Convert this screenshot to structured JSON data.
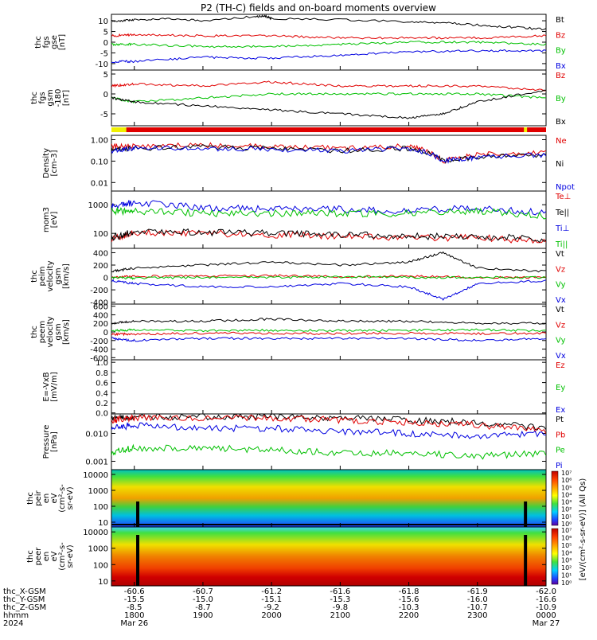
{
  "title": "P2 (TH-C) fields and on-board moments overview",
  "chart_data": [
    {
      "type": "line",
      "ylabel": [
        "thc",
        "fgs",
        "gse",
        "[nT]"
      ],
      "yticks": [
        "10",
        "5",
        "0",
        "-5",
        "-10"
      ],
      "ylim": [
        -13,
        13
      ],
      "yscale": "linear",
      "series": [
        {
          "name": "Bt",
          "color": "#000000",
          "x": [
            1740,
            1750,
            1800,
            1830,
            1900,
            1945,
            1955,
            2000,
            2100,
            2200,
            2230,
            2300,
            2330,
            2400
          ],
          "values": [
            10,
            10,
            10.5,
            11,
            10,
            12,
            12,
            11,
            10.5,
            9.5,
            9,
            8,
            7,
            6
          ]
        },
        {
          "name": "Bz",
          "color": "#e00000",
          "x": [
            1740,
            1800,
            1900,
            2000,
            2100,
            2200,
            2300,
            2400
          ],
          "values": [
            3,
            3.5,
            3,
            3,
            2,
            2,
            2,
            3
          ]
        },
        {
          "name": "By",
          "color": "#00c000",
          "x": [
            1740,
            1800,
            1900,
            2000,
            2100,
            2200,
            2300,
            2400
          ],
          "values": [
            -1,
            -1,
            -2,
            -2,
            -1,
            0,
            0,
            -1
          ]
        },
        {
          "name": "Bx",
          "color": "#0000e0",
          "x": [
            1740,
            1800,
            1900,
            2000,
            2100,
            2200,
            2300,
            2400
          ],
          "values": [
            -9,
            -9,
            -7,
            -7.5,
            -6,
            -4.5,
            -4,
            -4
          ]
        }
      ]
    },
    {
      "type": "line",
      "ylabel": [
        "thc",
        "fgs",
        "gsm",
        "-180",
        "[nT]"
      ],
      "yticks": [
        "5",
        "0",
        "-5"
      ],
      "ylim": [
        -8,
        6
      ],
      "yscale": "linear",
      "series": [
        {
          "name": "Bz",
          "color": "#e00000",
          "x": [
            1740,
            1800,
            1900,
            2000,
            2100,
            2200,
            2300,
            2400
          ],
          "values": [
            2,
            2.5,
            2,
            3,
            2,
            2,
            2,
            1
          ]
        },
        {
          "name": "By",
          "color": "#00c000",
          "x": [
            1740,
            1800,
            1900,
            2000,
            2100,
            2200,
            2300,
            2400
          ],
          "values": [
            -1,
            -2,
            -1,
            0,
            0,
            0,
            0,
            -1
          ]
        },
        {
          "name": "Bx",
          "color": "#000000",
          "x": [
            1740,
            1800,
            1900,
            2000,
            2100,
            2200,
            2230,
            2300,
            2400
          ],
          "values": [
            -1,
            -2,
            -3,
            -4,
            -5,
            -6,
            -5,
            -2,
            1
          ]
        }
      ]
    },
    {
      "type": "line",
      "ylabel": [
        "Density",
        "[cm-3]"
      ],
      "yticks": [
        "1.00",
        "0.10",
        "0.01"
      ],
      "ylim": [
        0.004,
        1.6
      ],
      "yscale": "log",
      "series": [
        {
          "name": "Ne",
          "color": "#e00000",
          "x": [
            1740,
            1800,
            1900,
            2000,
            2100,
            2200,
            2230,
            2300,
            2400
          ],
          "values": [
            0.5,
            0.5,
            0.55,
            0.5,
            0.4,
            0.5,
            0.1,
            0.2,
            0.25
          ]
        },
        {
          "name": "Ni",
          "color": "#000000",
          "x": [
            1740,
            1800,
            1900,
            2000,
            2100,
            2200,
            2230,
            2300,
            2400
          ],
          "values": [
            0.3,
            0.4,
            0.45,
            0.4,
            0.3,
            0.4,
            0.1,
            0.15,
            0.2
          ]
        },
        {
          "name": "Npot",
          "color": "#0000e0",
          "x": [
            1740,
            1800,
            1900,
            2000,
            2100,
            2200,
            2230,
            2300,
            2400
          ],
          "values": [
            0.3,
            0.4,
            0.4,
            0.35,
            0.3,
            0.4,
            0.1,
            0.15,
            0.2
          ]
        }
      ]
    },
    {
      "type": "line",
      "ylabel": [
        "mom3",
        "[eV]"
      ],
      "yticks": [
        "1000",
        "100"
      ],
      "ylim": [
        30,
        3000
      ],
      "yscale": "log",
      "series": [
        {
          "name": "Te⊥",
          "color": "#e00000",
          "x": [
            1740,
            1800,
            1900,
            2000,
            2100,
            2200,
            2300,
            2400
          ],
          "values": [
            60,
            100,
            100,
            90,
            80,
            70,
            70,
            50
          ]
        },
        {
          "name": "Te||",
          "color": "#000000",
          "x": [
            1740,
            1800,
            1900,
            2000,
            2100,
            2200,
            2300,
            2400
          ],
          "values": [
            70,
            110,
            110,
            100,
            90,
            80,
            80,
            60
          ]
        },
        {
          "name": "Ti⊥",
          "color": "#0000e0",
          "x": [
            1740,
            1800,
            1900,
            2000,
            2100,
            2200,
            2300,
            2400
          ],
          "values": [
            900,
            1200,
            800,
            700,
            700,
            600,
            800,
            500
          ]
        },
        {
          "name": "Ti||",
          "color": "#00c000",
          "x": [
            1740,
            1800,
            1900,
            2000,
            2100,
            2200,
            2300,
            2400
          ],
          "values": [
            600,
            600,
            500,
            500,
            500,
            500,
            600,
            400
          ]
        }
      ]
    },
    {
      "type": "line",
      "ylabel": [
        "thc",
        "peim",
        "velocity",
        "gsm",
        "[km/s]"
      ],
      "yticks": [
        "400",
        "200",
        "0",
        "-200",
        "-400"
      ],
      "ylim": [
        -430,
        470
      ],
      "yscale": "linear",
      "series": [
        {
          "name": "Vt",
          "color": "#000000",
          "x": [
            1740,
            1800,
            1900,
            2000,
            2100,
            2200,
            2230,
            2300,
            2400
          ],
          "values": [
            100,
            150,
            200,
            250,
            200,
            250,
            400,
            150,
            100
          ]
        },
        {
          "name": "Vz",
          "color": "#e00000",
          "x": [
            1740,
            1800,
            1900,
            2000,
            2100,
            2200,
            2300,
            2400
          ],
          "values": [
            0,
            20,
            20,
            30,
            10,
            20,
            0,
            0
          ]
        },
        {
          "name": "Vy",
          "color": "#00c000",
          "x": [
            1740,
            1800,
            1900,
            2000,
            2100,
            2200,
            2300,
            2400
          ],
          "values": [
            0,
            -10,
            0,
            0,
            10,
            0,
            0,
            0
          ]
        },
        {
          "name": "Vx",
          "color": "#0000e0",
          "x": [
            1740,
            1800,
            1900,
            2000,
            2100,
            2200,
            2230,
            2300,
            2400
          ],
          "values": [
            -50,
            -100,
            -150,
            -150,
            -100,
            -150,
            -350,
            -100,
            -50
          ]
        }
      ]
    },
    {
      "type": "line",
      "ylabel": [
        "thc",
        "peem",
        "velocity",
        "gsm",
        "[km/s]"
      ],
      "yticks": [
        "600",
        "400",
        "200",
        "0",
        "-200",
        "-400",
        "-600"
      ],
      "ylim": [
        -650,
        650
      ],
      "yscale": "linear",
      "series": [
        {
          "name": "Vt",
          "color": "#000000",
          "x": [
            1740,
            1800,
            1900,
            2000,
            2100,
            2200,
            2300,
            2400
          ],
          "values": [
            200,
            250,
            250,
            300,
            250,
            250,
            200,
            200
          ]
        },
        {
          "name": "Vz",
          "color": "#e00000",
          "x": [
            1740,
            1800,
            1900,
            2000,
            2100,
            2200,
            2300,
            2400
          ],
          "values": [
            -50,
            -50,
            -30,
            -30,
            -40,
            -30,
            -40,
            -30
          ]
        },
        {
          "name": "Vy",
          "color": "#00c000",
          "x": [
            1740,
            1800,
            1900,
            2000,
            2100,
            2200,
            2300,
            2400
          ],
          "values": [
            30,
            50,
            30,
            40,
            30,
            40,
            50,
            30
          ]
        },
        {
          "name": "Vx",
          "color": "#0000e0",
          "x": [
            1740,
            1800,
            1900,
            2000,
            2100,
            2200,
            2300,
            2400
          ],
          "values": [
            -150,
            -200,
            -150,
            -150,
            -150,
            -150,
            -200,
            -150
          ]
        }
      ]
    },
    {
      "type": "line",
      "ylabel": [
        "E=-VxB",
        "[mV/m]"
      ],
      "yticks": [
        "1.0",
        "0.8",
        "0.6",
        "0.4",
        "0.2",
        "0.0"
      ],
      "ylim": [
        -0.02,
        1.05
      ],
      "yscale": "linear",
      "series": [
        {
          "name": "Ez",
          "color": "#e00000",
          "x": [],
          "values": []
        },
        {
          "name": "Ey",
          "color": "#00c000",
          "x": [],
          "values": []
        },
        {
          "name": "Ex",
          "color": "#0000e0",
          "x": [],
          "values": []
        }
      ]
    },
    {
      "type": "line",
      "ylabel": [
        "Pressure",
        "[nPa]"
      ],
      "yticks": [
        "0.010",
        "0.001"
      ],
      "ylim": [
        0.0005,
        0.05
      ],
      "yscale": "log",
      "series": [
        {
          "name": "Pt",
          "color": "#000000",
          "x": [
            1740,
            1800,
            1900,
            2000,
            2100,
            2200,
            2300,
            2400
          ],
          "values": [
            0.035,
            0.04,
            0.04,
            0.04,
            0.035,
            0.03,
            0.025,
            0.015
          ]
        },
        {
          "name": "Pb",
          "color": "#e00000",
          "x": [
            1740,
            1800,
            1900,
            2000,
            2100,
            2200,
            2300,
            2400
          ],
          "values": [
            0.03,
            0.035,
            0.035,
            0.035,
            0.03,
            0.025,
            0.02,
            0.012
          ]
        },
        {
          "name": "Pe",
          "color": "#00c000",
          "x": [
            1740,
            1800,
            1900,
            2000,
            2100,
            2200,
            2300,
            2400
          ],
          "values": [
            0.002,
            0.003,
            0.003,
            0.0025,
            0.002,
            0.002,
            0.0015,
            0.002
          ]
        },
        {
          "name": "Pi",
          "color": "#0000e0",
          "x": [
            1740,
            1800,
            1900,
            2000,
            2100,
            2200,
            2300,
            2400
          ],
          "values": [
            0.015,
            0.02,
            0.015,
            0.015,
            0.012,
            0.01,
            0.008,
            0.01
          ]
        }
      ]
    },
    {
      "type": "heatmap",
      "ylabel": [
        "thc",
        "peir",
        "en",
        "eV",
        "(cm²-s-",
        "sr-eV)"
      ],
      "yticks": [
        "10000",
        "1000",
        "100",
        "10"
      ],
      "ylim": [
        5,
        20000
      ],
      "yscale": "log"
    },
    {
      "type": "heatmap",
      "ylabel": [
        "thc",
        "peer",
        "en",
        "eV",
        "(cm²-s-",
        "sr-eV)"
      ],
      "yticks": [
        "10000",
        "1000",
        "100",
        "10"
      ],
      "ylim": [
        5,
        20000
      ],
      "yscale": "log"
    }
  ],
  "colorbar": {
    "label": "[eV/(cm²-s-sr-eV)] (All Qs)",
    "ticks": [
      "10⁷",
      "10⁶",
      "10⁵",
      "10⁴",
      "10³",
      "10²",
      "10¹",
      "10⁰",
      "10⁷",
      "10⁶",
      "10⁵",
      "10⁴",
      "10³",
      "10²",
      "10¹",
      "10⁰"
    ]
  },
  "x_axis": {
    "ticks": [
      "1800",
      "1900",
      "2000",
      "2100",
      "2200",
      "2300",
      "0000"
    ],
    "row_labels": [
      "thc_X-GSM",
      "thc_Y-GSM",
      "thc_Z-GSM",
      "hhmm",
      "2024"
    ],
    "x_gsm": [
      "-60.6",
      "-60.7",
      "-61.2",
      "-61.6",
      "-61.8",
      "-61.9",
      "-62.0"
    ],
    "y_gsm": [
      "-15.5",
      "-15.0",
      "-15.1",
      "-15.3",
      "-15.6",
      "-16.0",
      "-16.6"
    ],
    "z_gsm": [
      "-8.5",
      "-8.7",
      "-9.2",
      "-9.8",
      "-10.3",
      "-10.7",
      "-10.9"
    ],
    "date_start": "Mar 26",
    "date_end": "Mar 27"
  }
}
